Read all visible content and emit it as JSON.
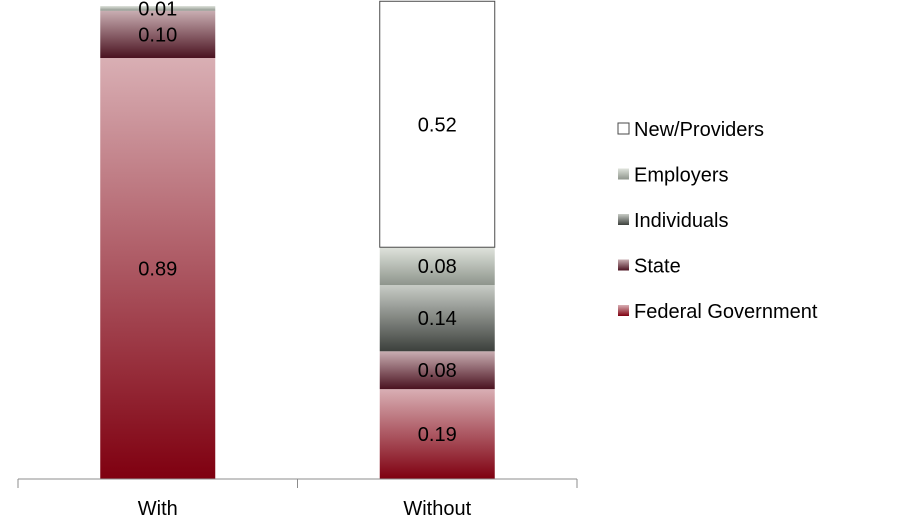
{
  "chart_data": {
    "type": "bar",
    "stacked": true,
    "title": "",
    "xlabel": "",
    "ylabel": "",
    "categories": [
      "With",
      "Without"
    ],
    "ylim": [
      0,
      1.0
    ],
    "grid": false,
    "legend_position": "right",
    "series": [
      {
        "name": "Federal Government",
        "values": [
          0.89,
          0.19
        ],
        "labels": [
          "0.89",
          "0.19"
        ],
        "color_top": "#d9afb4",
        "color_bottom": "#7f0010"
      },
      {
        "name": "State",
        "values": [
          0.1,
          0.08
        ],
        "labels": [
          "0.10",
          "0.08"
        ],
        "color_top": "#c9aeb2",
        "color_bottom": "#4a1220"
      },
      {
        "name": "Individuals",
        "values": [
          0.0,
          0.14
        ],
        "labels": [
          "",
          "0.14"
        ],
        "color_top": "#c8ccc6",
        "color_bottom": "#3c403c"
      },
      {
        "name": "Employers",
        "values": [
          0.01,
          0.08
        ],
        "labels": [
          "0.01",
          "0.08"
        ],
        "color_top": "#dfe3dc",
        "color_bottom": "#8e958c"
      },
      {
        "name": "New/Providers",
        "values": [
          0.0,
          0.52
        ],
        "labels": [
          "",
          "0.52"
        ],
        "color_top": "#ffffff",
        "color_bottom": "#ffffff"
      }
    ],
    "legend": [
      "New/Providers",
      "Employers",
      "Individuals",
      "State",
      "Federal Government"
    ]
  }
}
